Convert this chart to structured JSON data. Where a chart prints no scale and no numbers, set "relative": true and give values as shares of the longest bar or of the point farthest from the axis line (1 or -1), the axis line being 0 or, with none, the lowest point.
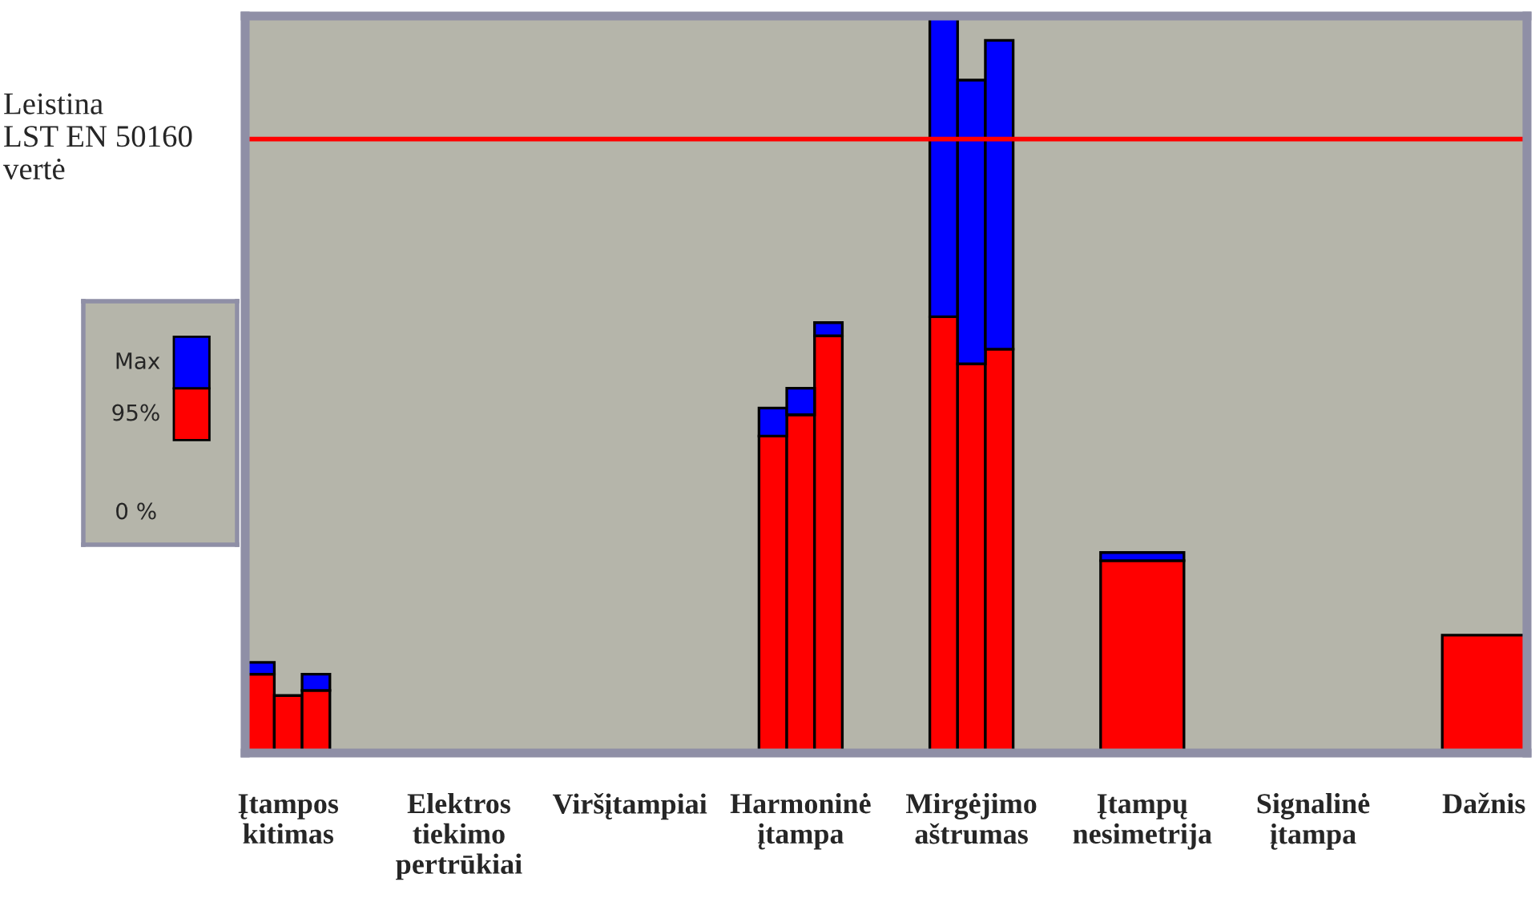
{
  "chart_data": {
    "type": "bar",
    "stacked": true,
    "relative": true,
    "categories": [
      null,
      "Įtampos\nkitimas",
      null,
      null,
      "Elektros\ntiekimo\npertrūkiai",
      null,
      null,
      "Viršįtampiai",
      null,
      null,
      "Harmoninė\nįtampa",
      null,
      null,
      "Mirgėjimo\naštrumas",
      null,
      null,
      "Įtampų\nnesimetrija",
      null,
      null,
      "Signalinė\nįtampa",
      null,
      null,
      "Dažnis",
      null
    ],
    "series": [
      {
        "name": "95%",
        "color": "#ff0000",
        "values": [
          0.107,
          0.078,
          0.085,
          null,
          null,
          null,
          null,
          null,
          null,
          0.43,
          0.459,
          0.566,
          0.592,
          0.528,
          0.548,
          null,
          0.261,
          null,
          null,
          null,
          null,
          null,
          0.16,
          null
        ]
      },
      {
        "name": "Max",
        "color": "#0000ff",
        "values": [
          0.016,
          null,
          0.022,
          null,
          null,
          null,
          null,
          null,
          null,
          0.038,
          0.036,
          0.018,
          0.408,
          0.385,
          0.419,
          null,
          0.011,
          null,
          null,
          null,
          null,
          null,
          null,
          null
        ]
      }
    ],
    "ref_lines": [
      {
        "axis": "y",
        "value": 0.833,
        "label": "Leistina\nLST EN 50160\nvertė",
        "color": "#ff0000"
      }
    ],
    "annotations": [
      "0 %"
    ],
    "legend": "left",
    "grid": false
  }
}
